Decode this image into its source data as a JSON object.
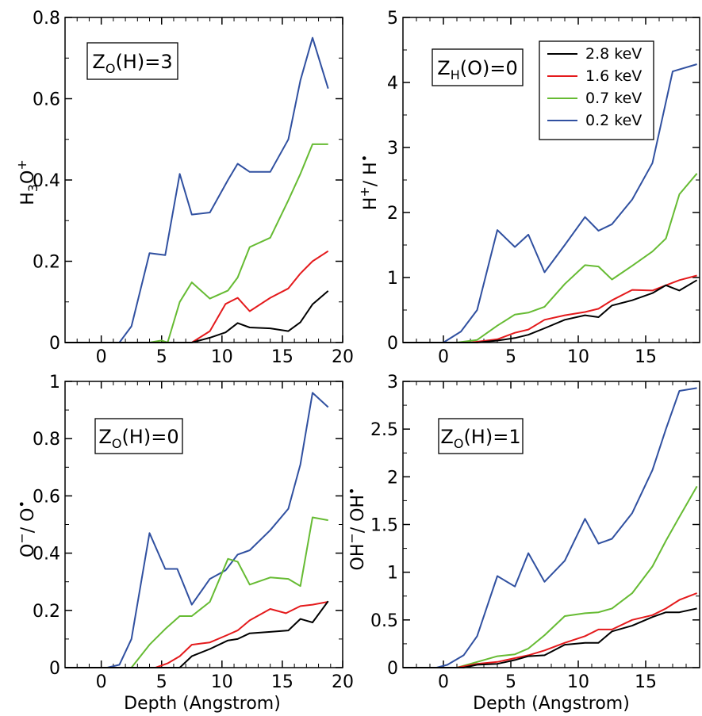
{
  "colors": {
    "2.8 keV": "#000000",
    "1.6 keV": "#e41a1c",
    "0.7 keV": "#66bb33",
    "0.2 keV": "#3050a0"
  },
  "legend": {
    "placement": "top-right of top-right panel",
    "entries": [
      "2.8 keV",
      "1.6 keV",
      "0.7 keV",
      "0.2 keV"
    ]
  },
  "chart_data": [
    {
      "type": "line",
      "panel": "top-left",
      "xlabel": "",
      "ylabel": "H₃O⁺",
      "annotation": "Z_O(H)=3",
      "xlim": [
        -3,
        20
      ],
      "ylim": [
        0,
        0.8
      ],
      "xticks": [
        0,
        5,
        10,
        15,
        20
      ],
      "yticks": [
        0,
        0.2,
        0.4,
        0.6,
        0.8
      ],
      "series": [
        {
          "name": "0.2 keV",
          "x": [
            -3,
            1.5,
            2.5,
            4,
            5.3,
            6.5,
            7.5,
            9,
            10.5,
            11.3,
            12.3,
            14,
            15.5,
            16.5,
            17.5,
            18.8
          ],
          "y": [
            0,
            0,
            0.04,
            0.22,
            0.215,
            0.415,
            0.315,
            0.32,
            0.4,
            0.44,
            0.42,
            0.42,
            0.5,
            0.645,
            0.75,
            0.625
          ]
        },
        {
          "name": "0.7 keV",
          "x": [
            -3,
            4,
            5,
            5.5,
            6.5,
            7.5,
            9,
            10.5,
            11.3,
            12.3,
            14,
            15.5,
            16.5,
            17.5,
            18.8
          ],
          "y": [
            0,
            0,
            0.005,
            0,
            0.1,
            0.148,
            0.108,
            0.128,
            0.16,
            0.235,
            0.258,
            0.35,
            0.415,
            0.488,
            0.488
          ]
        },
        {
          "name": "1.6 keV",
          "x": [
            -3,
            7.5,
            9,
            10.3,
            11.3,
            12.3,
            14,
            15.5,
            16.5,
            17.5,
            18.8
          ],
          "y": [
            0,
            0,
            0.028,
            0.095,
            0.11,
            0.077,
            0.11,
            0.133,
            0.17,
            0.2,
            0.225
          ]
        },
        {
          "name": "2.8 keV",
          "x": [
            -3,
            7.5,
            9,
            10.3,
            11.3,
            12.3,
            14,
            15.5,
            16.5,
            17.5,
            18.8
          ],
          "y": [
            0,
            0,
            0.012,
            0.025,
            0.048,
            0.037,
            0.035,
            0.028,
            0.05,
            0.094,
            0.127
          ]
        }
      ]
    },
    {
      "type": "line",
      "panel": "top-right",
      "xlabel": "",
      "ylabel": "H⁺/ H•",
      "annotation": "Z_H(O)=0",
      "xlim": [
        -3,
        19
      ],
      "ylim": [
        0,
        5
      ],
      "xticks": [
        0,
        5,
        10,
        15
      ],
      "yticks": [
        0,
        1,
        2,
        3,
        4,
        5
      ],
      "series": [
        {
          "name": "0.2 keV",
          "x": [
            -3,
            0,
            1.3,
            2.5,
            4,
            5.3,
            6.3,
            7.5,
            9,
            10.5,
            11.5,
            12.5,
            14,
            15.5,
            17,
            18.8
          ],
          "y": [
            0,
            0,
            0.17,
            0.5,
            1.73,
            1.47,
            1.66,
            1.08,
            1.5,
            1.93,
            1.72,
            1.82,
            2.2,
            2.76,
            4.17,
            4.28
          ]
        },
        {
          "name": "0.7 keV",
          "x": [
            -3,
            1,
            2.5,
            4,
            5.3,
            6.3,
            7.5,
            9,
            10.5,
            11.5,
            12.5,
            14,
            15.5,
            16.5,
            17.5,
            18.8
          ],
          "y": [
            0,
            0,
            0.04,
            0.26,
            0.43,
            0.46,
            0.55,
            0.9,
            1.19,
            1.17,
            0.97,
            1.18,
            1.4,
            1.6,
            2.28,
            2.6
          ]
        },
        {
          "name": "1.6 keV",
          "x": [
            -3,
            2,
            4,
            5.3,
            6.3,
            7.5,
            9,
            10.5,
            11.5,
            12.5,
            14,
            15.5,
            16.5,
            17.5,
            18.8
          ],
          "y": [
            0,
            0,
            0.05,
            0.15,
            0.2,
            0.35,
            0.42,
            0.47,
            0.52,
            0.65,
            0.81,
            0.8,
            0.88,
            0.96,
            1.03
          ]
        },
        {
          "name": "2.8 keV",
          "x": [
            -3,
            2.5,
            4,
            5.3,
            6.3,
            7.5,
            9,
            10.5,
            11.5,
            12.5,
            14,
            15.5,
            16.5,
            17.5,
            18.8
          ],
          "y": [
            0,
            0,
            0.03,
            0.07,
            0.12,
            0.22,
            0.35,
            0.42,
            0.39,
            0.57,
            0.65,
            0.76,
            0.88,
            0.8,
            0.96
          ]
        }
      ]
    },
    {
      "type": "line",
      "panel": "bottom-left",
      "xlabel": "Depth (Angstrom)",
      "ylabel": "O⁻/ O•",
      "annotation": "Z_O(H)=0",
      "xlim": [
        -3,
        20
      ],
      "ylim": [
        0,
        1
      ],
      "xticks": [
        0,
        5,
        10,
        15,
        20
      ],
      "yticks": [
        0,
        0.2,
        0.4,
        0.6,
        0.8,
        1
      ],
      "series": [
        {
          "name": "0.2 keV",
          "x": [
            -3,
            0.5,
            1.5,
            2.5,
            4,
            5.3,
            6.3,
            7.5,
            9,
            10.3,
            11.3,
            12.3,
            14,
            15.5,
            16.5,
            17.5,
            18.8
          ],
          "y": [
            0,
            0,
            0.01,
            0.1,
            0.47,
            0.345,
            0.345,
            0.22,
            0.31,
            0.34,
            0.395,
            0.41,
            0.48,
            0.555,
            0.71,
            0.96,
            0.91
          ]
        },
        {
          "name": "0.7 keV",
          "x": [
            -3,
            2.5,
            4,
            5.3,
            6.5,
            7.5,
            9,
            10.5,
            11.3,
            12.3,
            14,
            15.5,
            16.5,
            17.5,
            18.8
          ],
          "y": [
            0,
            0,
            0.08,
            0.135,
            0.18,
            0.18,
            0.23,
            0.38,
            0.37,
            0.29,
            0.315,
            0.31,
            0.285,
            0.525,
            0.515
          ]
        },
        {
          "name": "1.6 keV",
          "x": [
            -3,
            4.5,
            5.5,
            6.5,
            7.5,
            9,
            10.5,
            11.3,
            12.3,
            14,
            15.3,
            16.5,
            17.5,
            18.8
          ],
          "y": [
            0,
            0,
            0.015,
            0.04,
            0.08,
            0.088,
            0.115,
            0.13,
            0.165,
            0.205,
            0.19,
            0.215,
            0.22,
            0.23
          ]
        },
        {
          "name": "2.8 keV",
          "x": [
            -3,
            6.5,
            7.5,
            9,
            10.5,
            11.3,
            12.3,
            14,
            15.5,
            16.5,
            17.5,
            18.8
          ],
          "y": [
            0,
            0,
            0.04,
            0.065,
            0.095,
            0.1,
            0.12,
            0.125,
            0.13,
            0.17,
            0.158,
            0.232
          ]
        }
      ]
    },
    {
      "type": "line",
      "panel": "bottom-right",
      "xlabel": "Depth (Angstrom)",
      "ylabel": "OH⁻/ OH•",
      "annotation": "Z_O(H)=1",
      "xlim": [
        -3,
        19
      ],
      "ylim": [
        0,
        3
      ],
      "xticks": [
        0,
        5,
        10,
        15
      ],
      "yticks": [
        0,
        0.5,
        1,
        1.5,
        2,
        2.5,
        3
      ],
      "series": [
        {
          "name": "0.2 keV",
          "x": [
            -3,
            -0.5,
            0.3,
            1.5,
            2.5,
            4,
            5.3,
            6.3,
            7.5,
            9,
            10.5,
            11.5,
            12.5,
            14,
            15.5,
            16.5,
            17.5,
            18.8
          ],
          "y": [
            0,
            0,
            0.03,
            0.13,
            0.33,
            0.96,
            0.85,
            1.2,
            0.9,
            1.12,
            1.56,
            1.3,
            1.35,
            1.62,
            2.07,
            2.5,
            2.9,
            2.93
          ]
        },
        {
          "name": "0.7 keV",
          "x": [
            -3,
            1,
            2.5,
            4,
            5.3,
            6.3,
            7.5,
            9,
            10.5,
            11.5,
            12.5,
            14,
            15.5,
            16.5,
            17.5,
            18.8
          ],
          "y": [
            0,
            0,
            0.06,
            0.12,
            0.14,
            0.2,
            0.34,
            0.54,
            0.57,
            0.58,
            0.62,
            0.78,
            1.06,
            1.33,
            1.58,
            1.9
          ]
        },
        {
          "name": "1.6 keV",
          "x": [
            -3,
            1,
            2.5,
            4,
            5.3,
            6.3,
            7.5,
            9,
            10.5,
            11.5,
            12.5,
            14,
            15.5,
            16.5,
            17.5,
            18.8
          ],
          "y": [
            0,
            0,
            0.04,
            0.06,
            0.1,
            0.13,
            0.18,
            0.26,
            0.33,
            0.4,
            0.4,
            0.5,
            0.55,
            0.62,
            0.71,
            0.78
          ]
        },
        {
          "name": "2.8 keV",
          "x": [
            -3,
            1.5,
            2.5,
            4,
            5.3,
            6.3,
            7.5,
            9,
            10.5,
            11.5,
            12.5,
            14,
            15.5,
            16.5,
            17.5,
            18.8
          ],
          "y": [
            0,
            0,
            0.03,
            0.04,
            0.08,
            0.12,
            0.13,
            0.24,
            0.26,
            0.26,
            0.38,
            0.44,
            0.53,
            0.58,
            0.58,
            0.62
          ]
        }
      ]
    }
  ]
}
